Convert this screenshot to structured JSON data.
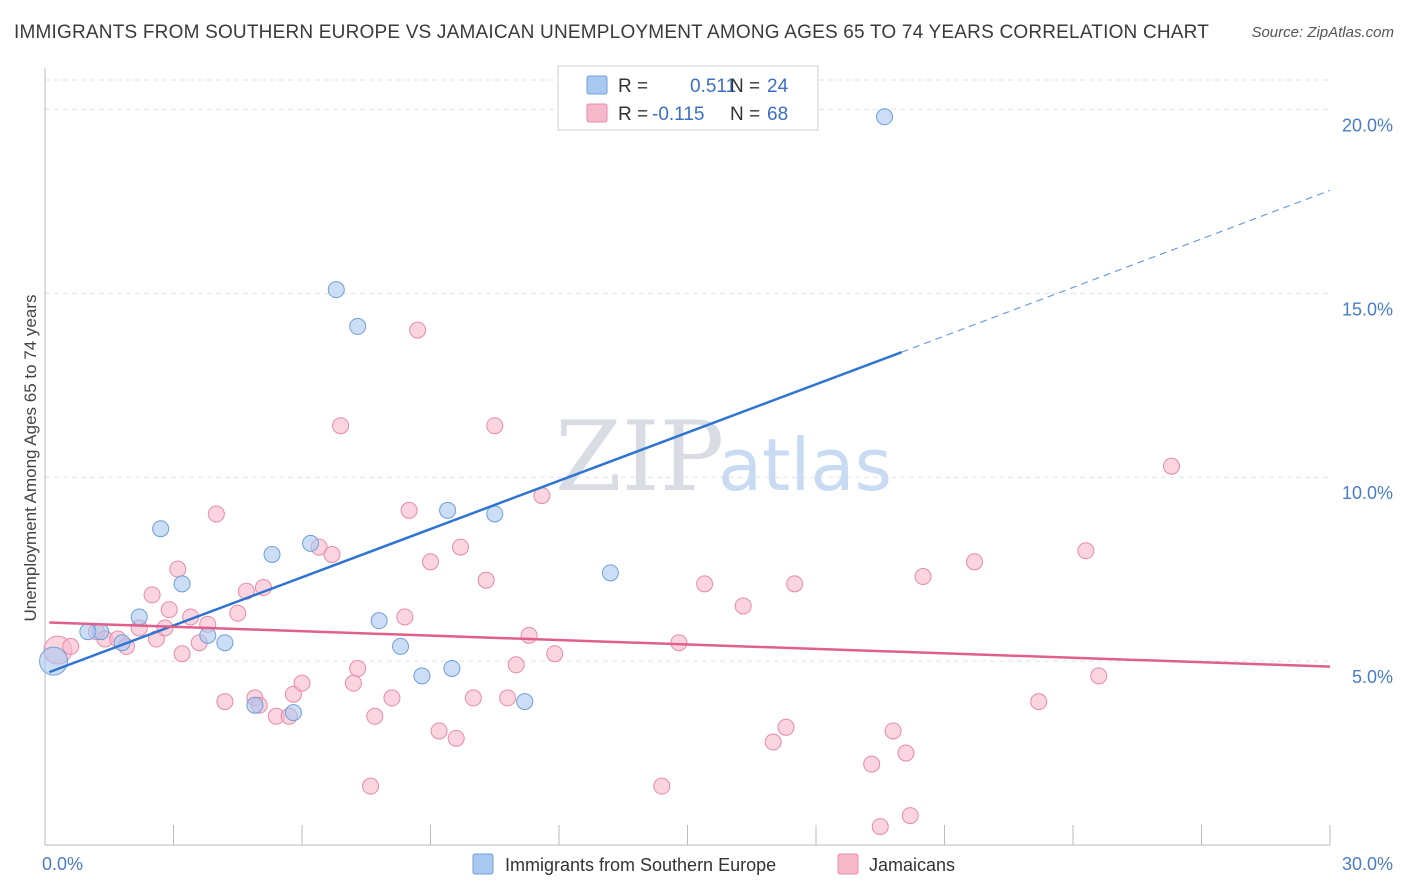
{
  "title": "IMMIGRANTS FROM SOUTHERN EUROPE VS JAMAICAN UNEMPLOYMENT AMONG AGES 65 TO 74 YEARS CORRELATION CHART",
  "source": "Source: ZipAtlas.com",
  "watermark": {
    "zip": "ZIP",
    "atlas": "atlas"
  },
  "legend_top": [
    {
      "r_label": "R =",
      "r_value": "0.511",
      "n_label": "N =",
      "n_value": "24",
      "color": "#a9c8f0"
    },
    {
      "r_label": "R =",
      "r_value": "-0.115",
      "n_label": "N =",
      "n_value": "68",
      "color": "#f6b9cc"
    }
  ],
  "chart_data": {
    "type": "scatter",
    "ylabel": "Unemployment Among Ages 65 to 74 years",
    "xlim": [
      0,
      30
    ],
    "ylim": [
      0,
      20.8
    ],
    "x_tick_labels": [
      {
        "value": 0,
        "label": "0.0%"
      },
      {
        "value": 30,
        "label": "30.0%"
      }
    ],
    "x_minor_ticks": [
      0,
      3,
      6,
      9,
      12,
      15,
      18,
      21,
      24,
      27,
      30
    ],
    "y_ticks": [
      {
        "value": 5,
        "label": "5.0%"
      },
      {
        "value": 10,
        "label": "10.0%"
      },
      {
        "value": 15,
        "label": "15.0%"
      },
      {
        "value": 20,
        "label": "20.0%"
      }
    ],
    "grid": true,
    "series": [
      {
        "name": "Immigrants from Southern Europe",
        "color": "#a9c8f0",
        "stroke": "#6f9edb",
        "line_color": "#2f74d0",
        "trend": {
          "x0": 0.1,
          "y0": 4.7,
          "x1": 20.0,
          "y1": 13.4,
          "dash_to_x": 30.0,
          "dash_to_y": 17.8
        },
        "points": [
          [
            0.2,
            5.0
          ],
          [
            1.3,
            5.8
          ],
          [
            1.8,
            5.5
          ],
          [
            2.2,
            6.2
          ],
          [
            2.7,
            8.6
          ],
          [
            3.2,
            7.1
          ],
          [
            3.8,
            5.7
          ],
          [
            4.2,
            5.5
          ],
          [
            4.9,
            3.8
          ],
          [
            5.3,
            7.9
          ],
          [
            5.8,
            3.6
          ],
          [
            6.2,
            8.2
          ],
          [
            6.8,
            15.1
          ],
          [
            7.3,
            14.1
          ],
          [
            7.8,
            6.1
          ],
          [
            8.3,
            5.4
          ],
          [
            8.8,
            4.6
          ],
          [
            9.4,
            9.1
          ],
          [
            9.5,
            4.8
          ],
          [
            10.5,
            9.0
          ],
          [
            11.2,
            3.9
          ],
          [
            13.2,
            7.4
          ],
          [
            19.6,
            19.8
          ],
          [
            1.0,
            5.8
          ]
        ]
      },
      {
        "name": "Jamaicans",
        "color": "#f6b9cc",
        "stroke": "#e88aa8",
        "line_color": "#e0608b",
        "trend": {
          "x0": 0.1,
          "y0": 6.05,
          "x1": 30.0,
          "y1": 4.85
        },
        "points": [
          [
            0.3,
            5.3
          ],
          [
            0.6,
            5.4
          ],
          [
            1.2,
            5.8
          ],
          [
            1.4,
            5.6
          ],
          [
            1.7,
            5.6
          ],
          [
            1.9,
            5.4
          ],
          [
            2.2,
            5.9
          ],
          [
            2.5,
            6.8
          ],
          [
            2.6,
            5.6
          ],
          [
            2.9,
            6.4
          ],
          [
            2.8,
            5.9
          ],
          [
            3.1,
            7.5
          ],
          [
            3.2,
            5.2
          ],
          [
            3.4,
            6.2
          ],
          [
            3.6,
            5.5
          ],
          [
            3.8,
            6.0
          ],
          [
            4.0,
            9.0
          ],
          [
            4.2,
            3.9
          ],
          [
            4.5,
            6.3
          ],
          [
            4.7,
            6.9
          ],
          [
            4.9,
            4.0
          ],
          [
            5.0,
            3.8
          ],
          [
            5.1,
            7.0
          ],
          [
            5.4,
            3.5
          ],
          [
            5.7,
            3.5
          ],
          [
            5.8,
            4.1
          ],
          [
            6.0,
            4.4
          ],
          [
            6.4,
            8.1
          ],
          [
            6.7,
            7.9
          ],
          [
            6.9,
            11.4
          ],
          [
            7.2,
            4.4
          ],
          [
            7.3,
            4.8
          ],
          [
            7.6,
            1.6
          ],
          [
            7.7,
            3.5
          ],
          [
            8.1,
            4.0
          ],
          [
            8.4,
            6.2
          ],
          [
            8.5,
            9.1
          ],
          [
            8.7,
            14.0
          ],
          [
            9.0,
            7.7
          ],
          [
            9.2,
            3.1
          ],
          [
            9.6,
            2.9
          ],
          [
            9.7,
            8.1
          ],
          [
            10.0,
            4.0
          ],
          [
            10.3,
            7.2
          ],
          [
            10.5,
            11.4
          ],
          [
            10.8,
            4.0
          ],
          [
            11.0,
            4.9
          ],
          [
            11.3,
            5.7
          ],
          [
            11.6,
            9.5
          ],
          [
            11.9,
            5.2
          ],
          [
            14.4,
            1.6
          ],
          [
            14.8,
            5.5
          ],
          [
            15.4,
            7.1
          ],
          [
            16.3,
            6.5
          ],
          [
            17.0,
            2.8
          ],
          [
            17.3,
            3.2
          ],
          [
            17.5,
            7.1
          ],
          [
            19.3,
            2.2
          ],
          [
            19.5,
            0.5
          ],
          [
            19.8,
            3.1
          ],
          [
            20.1,
            2.5
          ],
          [
            20.2,
            0.8
          ],
          [
            20.5,
            7.3
          ],
          [
            21.7,
            7.7
          ],
          [
            23.2,
            3.9
          ],
          [
            24.3,
            8.0
          ],
          [
            24.6,
            4.6
          ],
          [
            26.3,
            10.3
          ]
        ]
      }
    ]
  }
}
